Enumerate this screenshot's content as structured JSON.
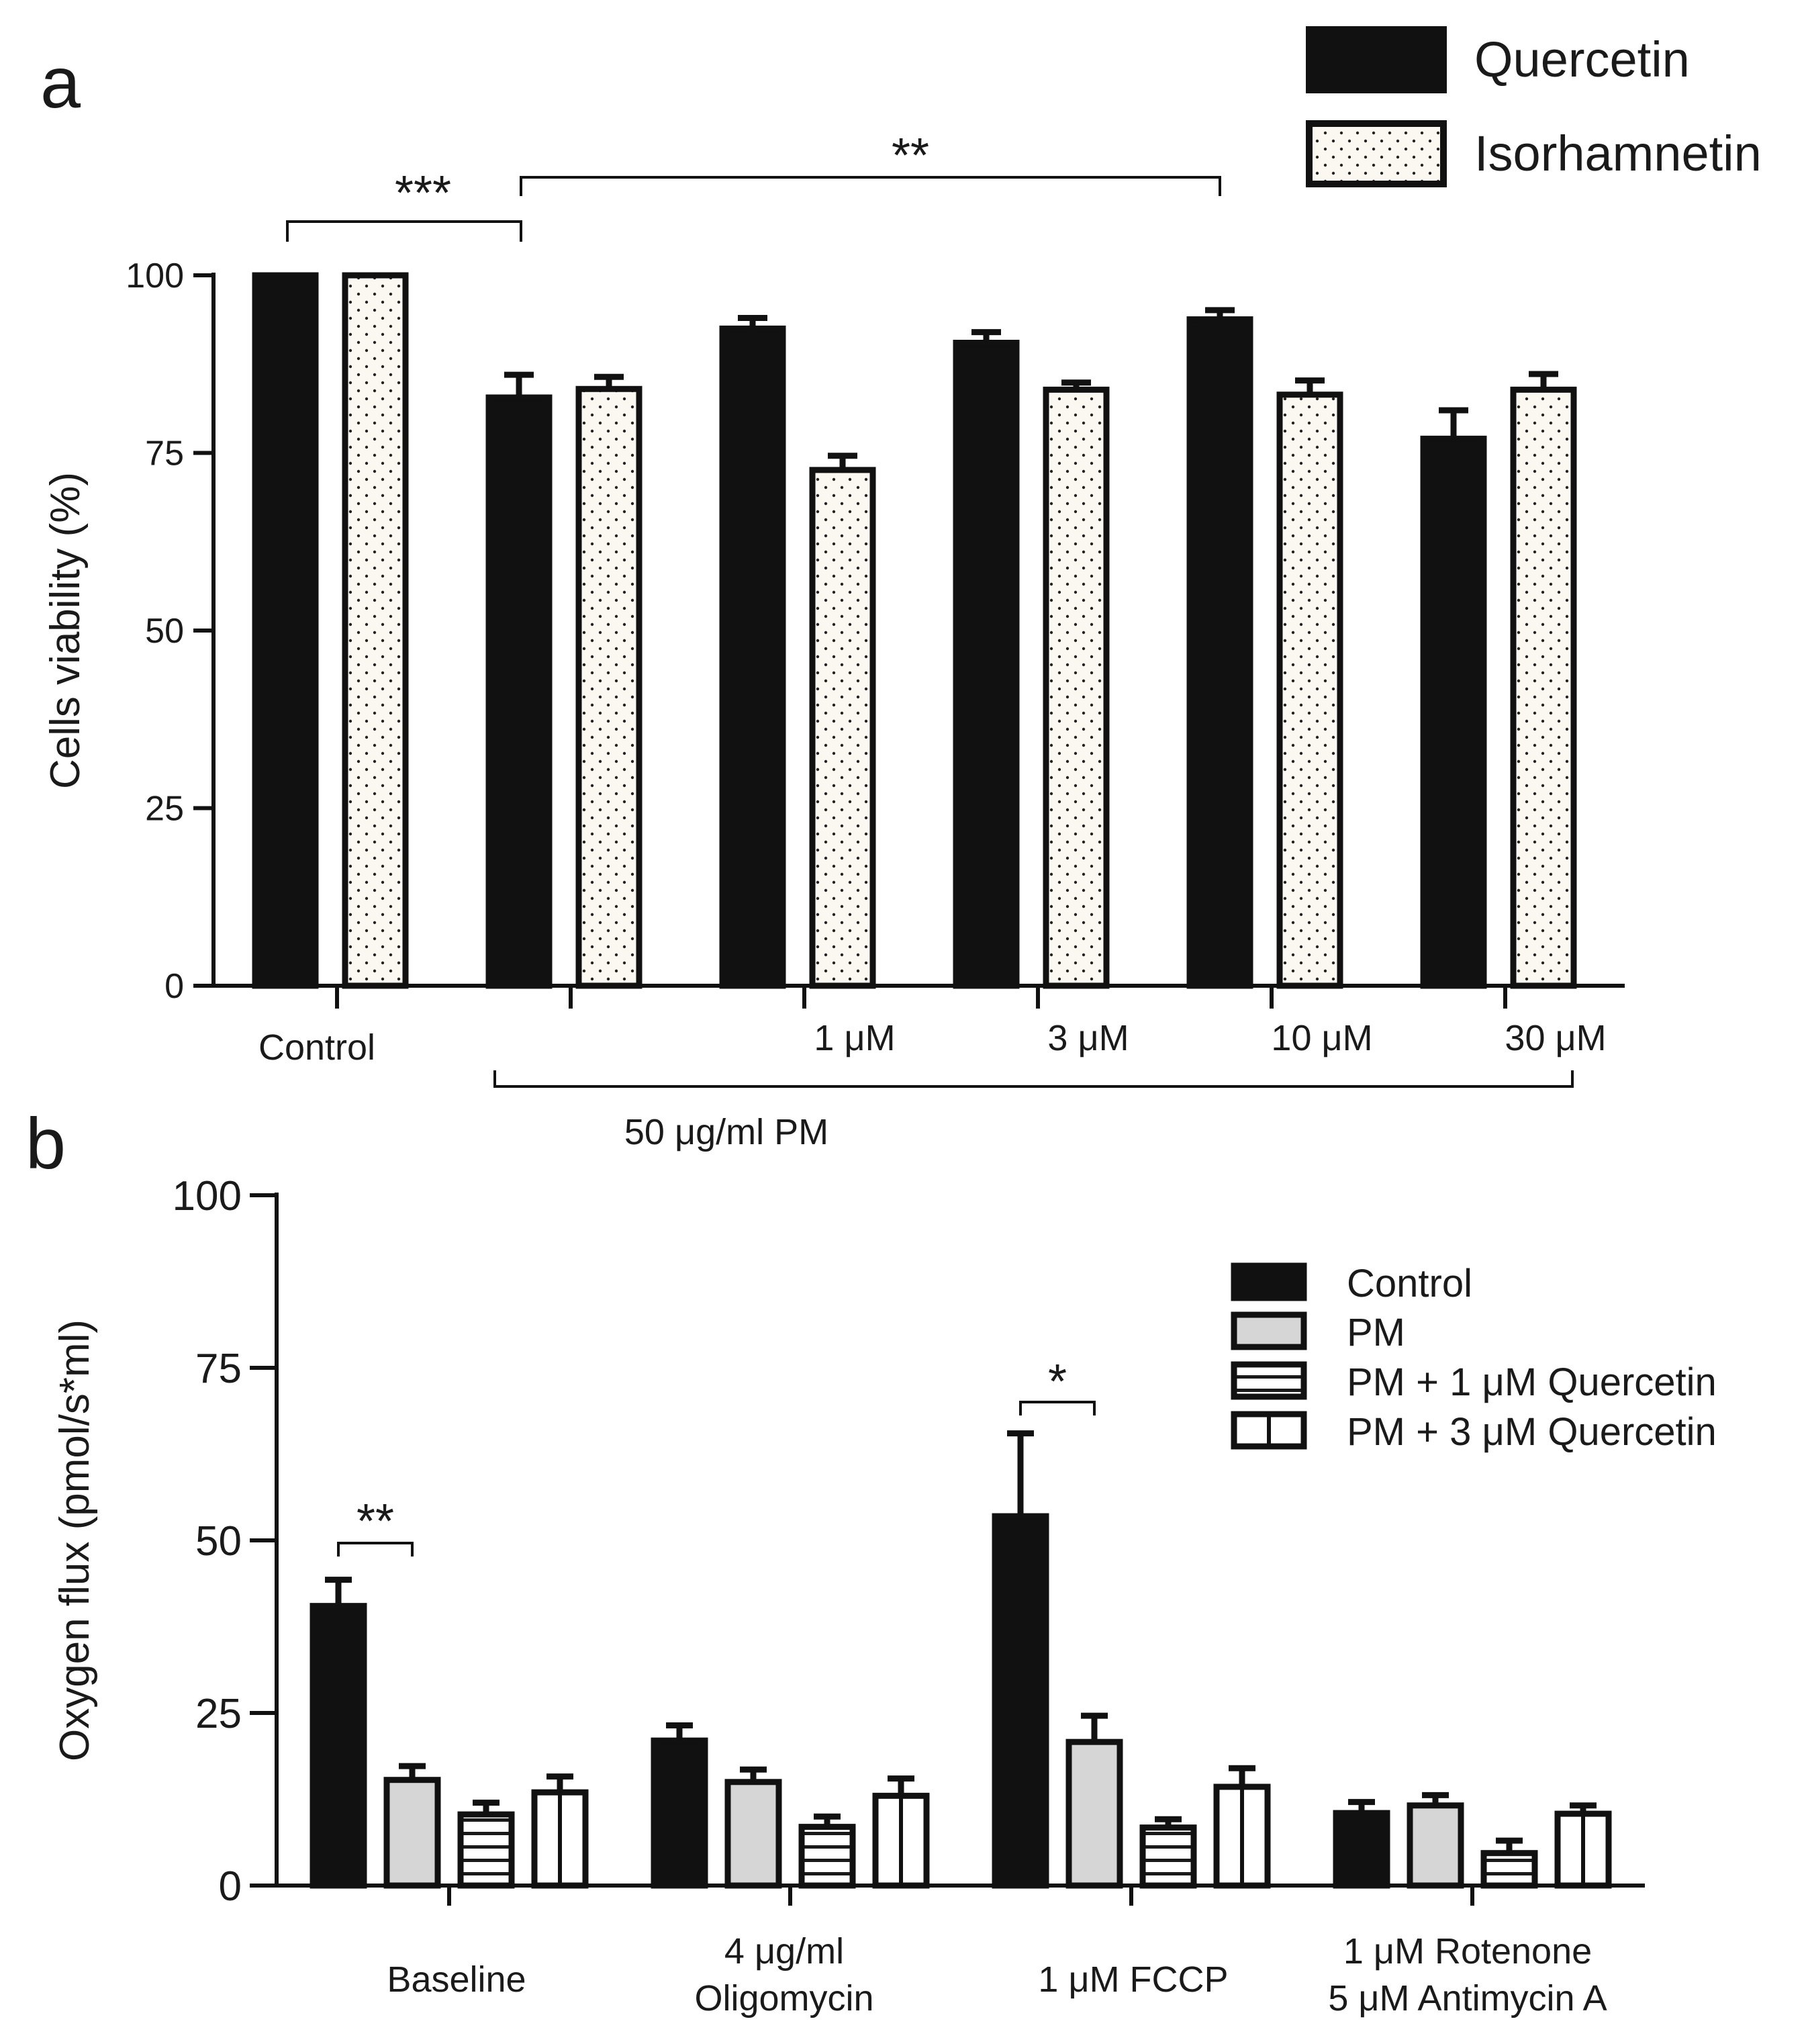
{
  "chart_data": [
    {
      "panel": "a",
      "type": "bar",
      "ylabel": "Cells viability (%)",
      "ylim": [
        0,
        100
      ],
      "yticks": [
        0,
        25,
        50,
        75,
        100
      ],
      "categories": [
        "Control",
        "",
        "1 μM",
        "3 μM",
        "10 μM",
        "30 μM"
      ],
      "group_label": "50 μg/ml PM",
      "series": [
        {
          "name": "Quercetin",
          "pattern": "solid",
          "values": [
            100,
            82.8,
            92.5,
            90.5,
            93.8,
            77.0
          ],
          "errors": [
            0,
            3.2,
            1.5,
            1.5,
            1.3,
            4.0
          ]
        },
        {
          "name": "Isorhamnetin",
          "pattern": "dots",
          "values": [
            100,
            84.0,
            72.6,
            83.9,
            83.2,
            83.9
          ],
          "errors": [
            0,
            1.7,
            2.0,
            1.0,
            2.0,
            2.2
          ]
        }
      ],
      "annotations": [
        {
          "label": "***",
          "from": "Control",
          "to": "50 μg/ml PM"
        },
        {
          "label": "**",
          "from": "50 μg/ml PM",
          "to": "10 μM"
        }
      ]
    },
    {
      "panel": "b",
      "type": "bar",
      "ylabel": "Oxygen flux (pmol/s*ml)",
      "ylim": [
        0,
        100
      ],
      "yticks": [
        0,
        25,
        50,
        75,
        100
      ],
      "categories": [
        [
          "Baseline"
        ],
        [
          "4 μg/ml",
          "Oligomycin"
        ],
        [
          "1 μM FCCP"
        ],
        [
          "1 μM Rotenone",
          "5 μM Antimycin A"
        ]
      ],
      "series": [
        {
          "name": "Control",
          "pattern": "solid",
          "values": [
            40.5,
            21.0,
            53.5,
            10.5
          ],
          "errors": [
            3.8,
            2.2,
            12.0,
            1.6
          ]
        },
        {
          "name": "PM",
          "pattern": "gray",
          "values": [
            15.3,
            15.0,
            20.8,
            11.6
          ],
          "errors": [
            2.0,
            1.8,
            3.8,
            1.5
          ]
        },
        {
          "name": "PM + 1 μM Quercetin",
          "pattern": "hstripes",
          "values": [
            10.3,
            8.5,
            8.4,
            4.7
          ],
          "errors": [
            1.7,
            1.5,
            1.2,
            1.8
          ]
        },
        {
          "name": "PM + 3 μM Quercetin",
          "pattern": "vstripe",
          "values": [
            13.5,
            13.0,
            14.3,
            10.4
          ],
          "errors": [
            2.3,
            2.5,
            2.7,
            1.2
          ]
        }
      ],
      "annotations": [
        {
          "label": "**",
          "category": "Baseline",
          "from": "Control",
          "to": "PM"
        },
        {
          "label": "*",
          "category": "1 μM FCCP",
          "from": "Control",
          "to": "PM"
        }
      ]
    }
  ],
  "panels": {
    "a": "a",
    "b": "b"
  }
}
